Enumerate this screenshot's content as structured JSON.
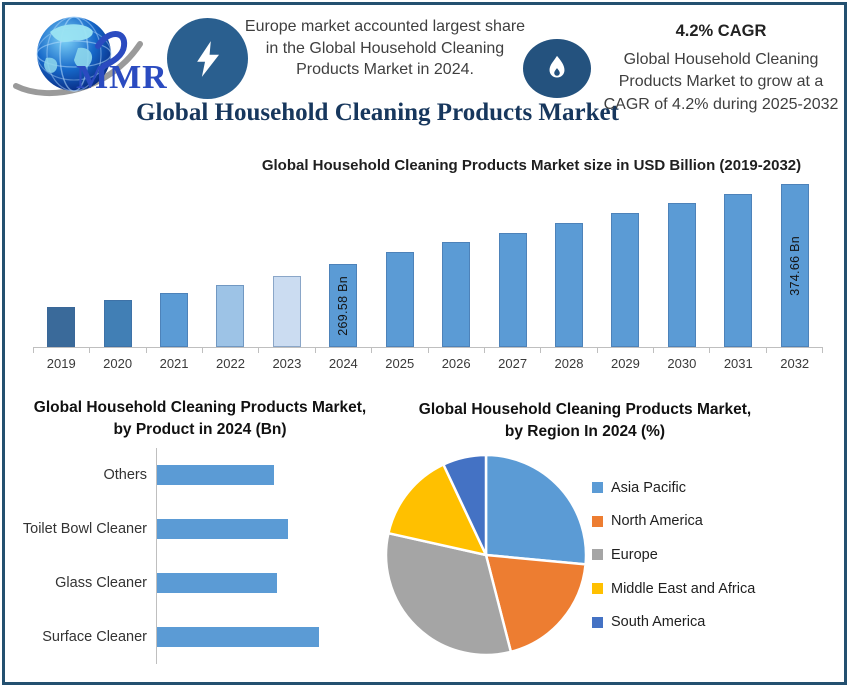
{
  "page": {
    "border_color": "#235070",
    "background": "#FFFFFF"
  },
  "header": {
    "logo": {
      "text": "MMR",
      "text_color": "#2B4BC0"
    },
    "lightning_badge_color": "#2A5F8F",
    "flame_badge_color": "#24527E",
    "highlight": "Europe market accounted largest share in the Global Household Cleaning Products Market in 2024.",
    "cagr_title": "4.2% CAGR",
    "cagr_text": "Global Household Cleaning Products Market to grow at a CAGR of 4.2% during 2025-2032",
    "main_title": "Global Household Cleaning Products Market",
    "main_title_color": "#17375D"
  },
  "chart_data": [
    {
      "name": "market-size-by-year",
      "type": "bar",
      "title": "Global Household Cleaning Products Market size in USD Billion (2019-2032)",
      "unit": "USD Billion",
      "categories": [
        "2019",
        "2020",
        "2021",
        "2022",
        "2023",
        "2024",
        "2025",
        "2026",
        "2027",
        "2028",
        "2029",
        "2030",
        "2031",
        "2032"
      ],
      "values": [
        213,
        222,
        231,
        242,
        254,
        269.58,
        285,
        298,
        310,
        323,
        336,
        349,
        361,
        374.66
      ],
      "labeled_values": {
        "2024": "269.58 Bn",
        "2032": "374.66 Bn"
      },
      "bar_colors": [
        "#3A6A9A",
        "#417FB5",
        "#5B9BD5",
        "#9DC3E6",
        "#CBDCF1",
        "#5B9BD5",
        "#5B9BD5",
        "#5B9BD5",
        "#5B9BD5",
        "#5B9BD5",
        "#5B9BD5",
        "#5B9BD5",
        "#5B9BD5",
        "#5B9BD5"
      ],
      "axis_color": "#BFBFBF",
      "ylim": [
        160,
        385
      ],
      "grid": false,
      "legend_position": "none"
    },
    {
      "name": "by-product-2024",
      "type": "bar",
      "orientation": "horizontal",
      "title": "Global Household Cleaning Products Market, by Product in 2024 (Bn)",
      "categories": [
        "Others",
        "Toilet Bowl Cleaner",
        "Glass Cleaner",
        "Surface Cleaner"
      ],
      "values": [
        72,
        81,
        74,
        100
      ],
      "bar_color": "#5B9BD5",
      "axis_color": "#BFBFBF",
      "grid": false,
      "legend_position": "none"
    },
    {
      "name": "by-region-2024",
      "type": "pie",
      "title": "Global Household Cleaning Products Market, by Region In 2024 (%)",
      "labels": [
        "Asia Pacific",
        "North America",
        "Europe",
        "Middle East and Africa",
        "South America"
      ],
      "values": [
        26.5,
        19.5,
        32.5,
        14.5,
        7
      ],
      "colors": [
        "#5B9BD5",
        "#ED7D31",
        "#A5A5A5",
        "#FFC000",
        "#4472C4"
      ],
      "legend_position": "right"
    }
  ]
}
